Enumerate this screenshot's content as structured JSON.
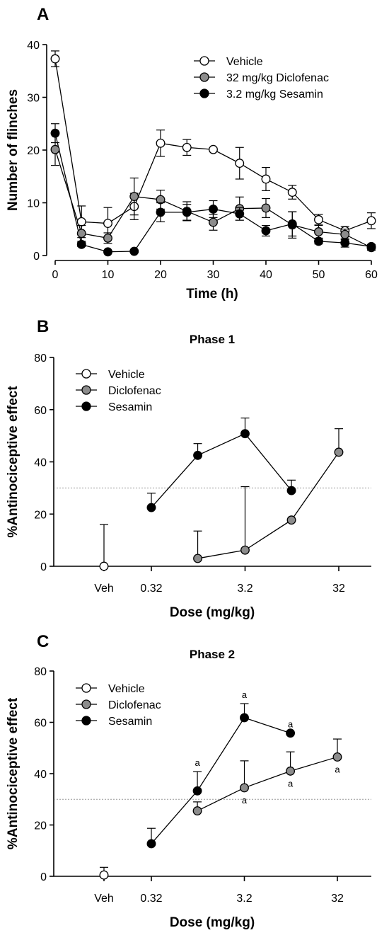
{
  "colors": {
    "vehicle": "#ffffff",
    "diclofenac": "#8c8c8c",
    "sesamin": "#000000",
    "reference_line": "#999999"
  },
  "chart_data": [
    {
      "panel": "A",
      "type": "line",
      "title": "",
      "xlabel": "Time (h)",
      "ylabel": "Number of flinches",
      "xlim": [
        0,
        60
      ],
      "ylim": [
        0,
        40
      ],
      "xticks": [
        0,
        10,
        20,
        30,
        40,
        50,
        60
      ],
      "yticks": [
        0,
        10,
        20,
        30,
        40
      ],
      "legend_position": "top-right",
      "series": [
        {
          "name": "Vehicle",
          "key": "vehicle",
          "x": [
            0,
            5,
            10,
            15,
            20,
            25,
            30,
            35,
            40,
            45,
            50,
            55,
            60
          ],
          "y": [
            37.3,
            6.4,
            6.1,
            9.3,
            21.3,
            20.5,
            20.1,
            17.5,
            14.5,
            12.0,
            6.8,
            4.7,
            6.6
          ],
          "err": [
            1.5,
            3.0,
            3.0,
            2.5,
            2.5,
            1.5,
            0.3,
            3.0,
            2.2,
            1.3,
            1.0,
            0.8,
            1.5
          ]
        },
        {
          "name": "32 mg/kg Diclofenac",
          "key": "diclofenac",
          "x": [
            0,
            5,
            10,
            15,
            20,
            25,
            30,
            35,
            40,
            45,
            50,
            55,
            60
          ],
          "y": [
            20.1,
            4.2,
            3.3,
            11.2,
            10.6,
            8.4,
            6.3,
            8.9,
            9.0,
            5.8,
            4.5,
            4.0,
            1.5
          ],
          "err": [
            3.0,
            1.5,
            1.0,
            3.5,
            1.8,
            1.8,
            1.5,
            2.2,
            1.8,
            2.5,
            1.2,
            1.0,
            0.5
          ]
        },
        {
          "name": "3.2 mg/kg Sesamin",
          "key": "sesamin",
          "x": [
            0,
            5,
            10,
            15,
            20,
            25,
            30,
            35,
            40,
            45,
            50,
            55,
            60
          ],
          "y": [
            23.2,
            2.1,
            0.7,
            0.8,
            8.2,
            8.2,
            8.8,
            7.9,
            4.7,
            6.0,
            2.7,
            2.4,
            1.7
          ],
          "err": [
            1.8,
            0.4,
            0.2,
            0.2,
            1.8,
            1.5,
            1.6,
            1.2,
            1.0,
            2.3,
            0.5,
            0.8,
            0.4
          ]
        }
      ]
    },
    {
      "panel": "B",
      "type": "line",
      "title": "Phase 1",
      "xlabel": "Dose (mg/kg)",
      "ylabel": "%Antinociceptive effect",
      "ylim": [
        0,
        80
      ],
      "yticks": [
        0,
        20,
        40,
        60,
        80
      ],
      "xscale": "log",
      "xticks": [
        {
          "label": "Veh"
        },
        {
          "label": "0.32",
          "value": 0.32
        },
        {
          "label": "3.2",
          "value": 3.2
        },
        {
          "label": "32",
          "value": 32
        }
      ],
      "reference_line": 30,
      "legend_position": "top-left",
      "series": [
        {
          "name": "Vehicle",
          "key": "vehicle",
          "x": [
            "Veh"
          ],
          "y": [
            0
          ],
          "err": [
            16
          ]
        },
        {
          "name": "Diclofenac",
          "key": "diclofenac",
          "x": [
            1,
            3.2,
            10,
            32
          ],
          "y": [
            3,
            6.2,
            17.7,
            43.7
          ],
          "err": [
            10.5,
            24.3,
            0,
            9
          ]
        },
        {
          "name": "Sesamin",
          "key": "sesamin",
          "x": [
            0.32,
            1,
            3.2,
            10
          ],
          "y": [
            22.5,
            42.5,
            50.8,
            29
          ],
          "err": [
            5.5,
            4.5,
            6,
            4
          ]
        }
      ]
    },
    {
      "panel": "C",
      "type": "line",
      "title": "Phase 2",
      "xlabel": "Dose (mg/kg)",
      "ylabel": "%Antinociceptive effect",
      "ylim": [
        0,
        80
      ],
      "yticks": [
        0,
        20,
        40,
        60,
        80
      ],
      "xscale": "log",
      "xticks": [
        {
          "label": "Veh"
        },
        {
          "label": "0.32",
          "value": 0.32
        },
        {
          "label": "3.2",
          "value": 3.2
        },
        {
          "label": "32",
          "value": 32
        }
      ],
      "reference_line": 30,
      "legend_position": "top-left",
      "series": [
        {
          "name": "Vehicle",
          "key": "vehicle",
          "x": [
            "Veh"
          ],
          "y": [
            0.5
          ],
          "err": [
            3
          ]
        },
        {
          "name": "Diclofenac",
          "key": "diclofenac",
          "x": [
            1,
            3.2,
            10,
            32
          ],
          "y": [
            25.5,
            34.5,
            41,
            46.5
          ],
          "err": [
            3.5,
            10.5,
            7.5,
            7
          ]
        },
        {
          "name": "Sesamin",
          "key": "sesamin",
          "x": [
            0.32,
            1,
            3.2,
            10
          ],
          "y": [
            12.7,
            33.3,
            61.8,
            55.8
          ],
          "err": [
            6,
            7.5,
            5.5,
            0
          ]
        }
      ],
      "annotations": [
        {
          "text": "a",
          "series": "sesamin",
          "x": 1,
          "placement": "above"
        },
        {
          "text": "a",
          "series": "sesamin",
          "x": 3.2,
          "placement": "above"
        },
        {
          "text": "a",
          "series": "sesamin",
          "x": 10,
          "placement": "above"
        },
        {
          "text": "a",
          "series": "diclofenac",
          "x": 3.2,
          "placement": "below"
        },
        {
          "text": "a",
          "series": "diclofenac",
          "x": 10,
          "placement": "below"
        },
        {
          "text": "a",
          "series": "diclofenac",
          "x": 32,
          "placement": "below"
        }
      ]
    }
  ]
}
